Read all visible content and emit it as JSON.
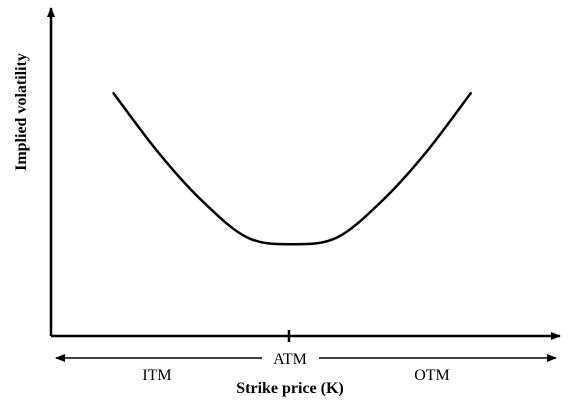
{
  "chart_data": {
    "type": "line",
    "title": "",
    "ylabel": "Implied volatility",
    "xlabel": "Strike price (K)",
    "regions": [
      "ITM",
      "ATM",
      "OTM"
    ],
    "series": [
      {
        "values_description_free": true,
        "x": [
          -1.0,
          -0.75,
          -0.5,
          -0.25,
          0.0,
          0.25,
          0.5,
          0.75,
          1.0
        ],
        "y": [
          0.74,
          0.56,
          0.41,
          0.3,
          0.28,
          0.3,
          0.41,
          0.56,
          0.74
        ]
      }
    ],
    "xlim": [
      -1.35,
      1.5
    ],
    "ylim": [
      0,
      1.0
    ],
    "grid": false,
    "ticks_shown": false,
    "colors": {
      "line": "#000000",
      "axes": "#000000"
    }
  }
}
